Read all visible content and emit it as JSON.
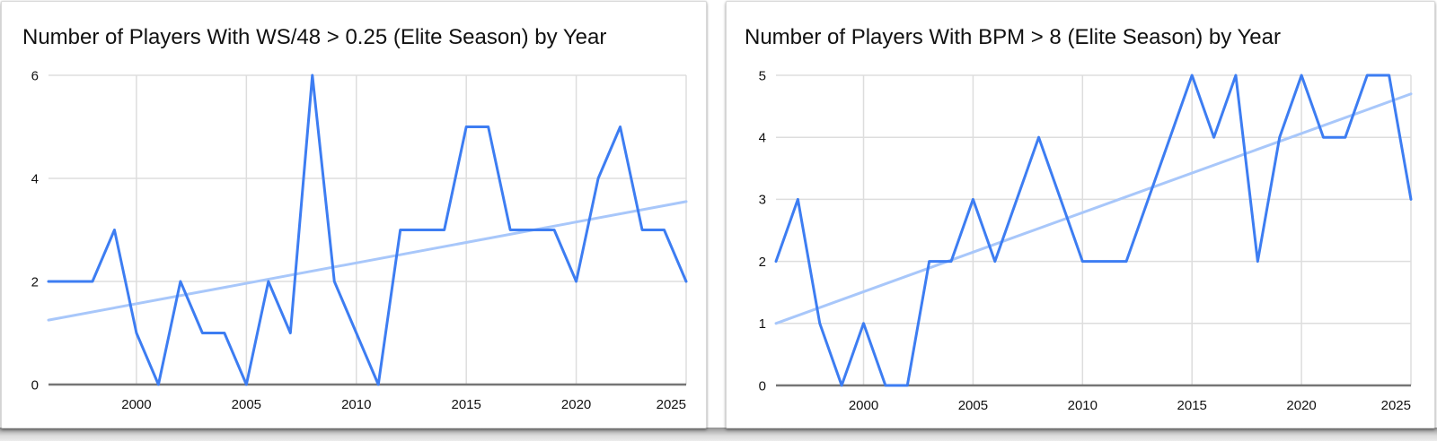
{
  "page": {
    "background_color": "#ffffff",
    "card_border_color": "#d9d9d9"
  },
  "style": {
    "series_color": "#3d7df2",
    "trend_color": "#a8c7fa",
    "grid_color": "#dddddd",
    "baseline_color": "#757575",
    "axis_text_color": "#111111",
    "title_color": "#111111"
  },
  "chart_data": [
    {
      "type": "line",
      "title": "Number of Players With WS/48 > 0.25 (Elite Season) by Year",
      "x": [
        1996,
        1997,
        1998,
        1999,
        2000,
        2001,
        2002,
        2003,
        2004,
        2005,
        2006,
        2007,
        2008,
        2009,
        2010,
        2011,
        2012,
        2013,
        2014,
        2015,
        2016,
        2017,
        2018,
        2019,
        2020,
        2021,
        2022,
        2023,
        2024,
        2025
      ],
      "series": [
        {
          "name": "Players with WS/48 > 0.25",
          "values": [
            2,
            2,
            2,
            3,
            1,
            0,
            2,
            1,
            1,
            0,
            2,
            1,
            6,
            2,
            1,
            0,
            3,
            3,
            3,
            5,
            5,
            3,
            3,
            3,
            2,
            4,
            5,
            3,
            3,
            2
          ],
          "color": "#3d7df2"
        },
        {
          "name": "Trendline",
          "kind": "trend",
          "start_value": 1.25,
          "end_value": 3.55,
          "color": "#a8c7fa"
        }
      ],
      "xlabel": "",
      "ylabel": "",
      "ylim": [
        0,
        6
      ],
      "yticks": [
        0,
        2,
        4,
        6
      ],
      "xticks": [
        2000,
        2005,
        2010,
        2015,
        2020,
        2025
      ],
      "grid": "on",
      "legend": "none"
    },
    {
      "type": "line",
      "title": "Number of Players With BPM > 8 (Elite Season) by Year",
      "x": [
        1996,
        1997,
        1998,
        1999,
        2000,
        2001,
        2002,
        2003,
        2004,
        2005,
        2006,
        2007,
        2008,
        2009,
        2010,
        2011,
        2012,
        2013,
        2014,
        2015,
        2016,
        2017,
        2018,
        2019,
        2020,
        2021,
        2022,
        2023,
        2024,
        2025
      ],
      "series": [
        {
          "name": "Players with BPM > 8",
          "values": [
            2,
            3,
            1,
            0,
            1,
            0,
            0,
            2,
            2,
            3,
            2,
            3,
            4,
            3,
            2,
            2,
            2,
            3,
            4,
            5,
            4,
            5,
            2,
            4,
            5,
            4,
            4,
            5,
            5,
            3
          ],
          "color": "#3d7df2"
        },
        {
          "name": "Trendline",
          "kind": "trend",
          "start_value": 1.0,
          "end_value": 4.7,
          "color": "#a8c7fa"
        }
      ],
      "xlabel": "",
      "ylabel": "",
      "ylim": [
        0,
        5
      ],
      "yticks": [
        0,
        1,
        2,
        3,
        4,
        5
      ],
      "xticks": [
        2000,
        2005,
        2010,
        2015,
        2020,
        2025
      ],
      "grid": "on",
      "legend": "none"
    }
  ]
}
